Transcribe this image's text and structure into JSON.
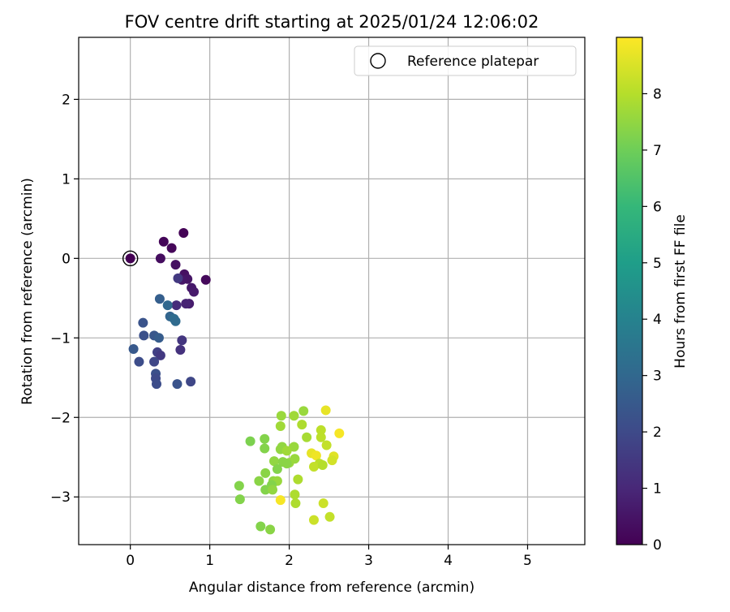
{
  "chart_data": {
    "type": "scatter",
    "title": "FOV centre drift starting at 2025/01/24 12:06:02",
    "xlabel": "Angular distance from reference (arcmin)",
    "ylabel": "Rotation from reference (arcmin)",
    "xlim": [
      -0.65,
      5.72
    ],
    "ylim": [
      -3.6,
      2.78
    ],
    "xticks": [
      0,
      1,
      2,
      3,
      4,
      5
    ],
    "yticks": [
      -3,
      -2,
      -1,
      0,
      1,
      2
    ],
    "grid": true,
    "legend": {
      "placement": "top-right",
      "entries": [
        "Reference platepar"
      ]
    },
    "reference_point": {
      "x": 0,
      "y": 0
    },
    "colorbar": {
      "label": "Hours from first FF file",
      "range": [
        0,
        9
      ],
      "ticks": [
        0,
        1,
        2,
        3,
        4,
        5,
        6,
        7,
        8
      ],
      "colormap": "viridis",
      "stops": [
        "#440154",
        "#482878",
        "#3e4a89",
        "#31688e",
        "#26828e",
        "#1f9e89",
        "#35b779",
        "#6ece58",
        "#b5de2b",
        "#fde725"
      ]
    },
    "series": [
      {
        "x": [
          0,
          0.67,
          0.42,
          0.52,
          0.95,
          0.38,
          0.57,
          0.68,
          0.72,
          0.65,
          0.77,
          0.8,
          0.74,
          0.7,
          0.6,
          0.58,
          0.37,
          0.47,
          0.5,
          0.55,
          0.57,
          0.16,
          0.3,
          0.36,
          0.17,
          0.65,
          0.04,
          0.34,
          0.63,
          0.38,
          0.3,
          0.32,
          0.11,
          0.32,
          0.33,
          0.59,
          0.76
        ],
        "y": [
          0,
          0.32,
          0.21,
          0.13,
          -0.27,
          0.0,
          -0.08,
          -0.2,
          -0.26,
          -0.27,
          -0.37,
          -0.42,
          -0.57,
          -0.57,
          -0.25,
          -0.59,
          -0.51,
          -0.59,
          -0.73,
          -0.76,
          -0.79,
          -0.81,
          -0.97,
          -1.0,
          -0.97,
          -1.03,
          -1.14,
          -1.18,
          -1.15,
          -1.22,
          -1.3,
          -1.45,
          -1.3,
          -1.51,
          -1.58,
          -1.58,
          -1.55
        ],
        "hours": [
          0,
          0.05,
          0.1,
          0.15,
          0.2,
          0.3,
          0.35,
          0.4,
          0.5,
          0.55,
          0.6,
          0.65,
          0.7,
          0.9,
          1.5,
          1.1,
          2.7,
          3.0,
          2.9,
          3.2,
          3.1,
          2.3,
          2.4,
          2.6,
          2.2,
          1.4,
          2.5,
          1.7,
          1.3,
          1.5,
          1.9,
          2.2,
          2.1,
          2.0,
          2.1,
          2.3,
          1.9
        ]
      },
      {
        "x": [
          1.9,
          2.06,
          2.18,
          2.46,
          2.63,
          2.4,
          2.4,
          2.47,
          2.22,
          1.89,
          1.91,
          2.06,
          2.16,
          1.69,
          1.51,
          1.69,
          1.89,
          1.97,
          2.07,
          2.0,
          2.28,
          2.34,
          2.56,
          2.54,
          2.38,
          2.31,
          2.42,
          1.81,
          1.92,
          1.97,
          1.7,
          1.85,
          1.8,
          2.11,
          1.62,
          1.85,
          1.78,
          1.37,
          1.7,
          1.79,
          2.07,
          1.89,
          1.38,
          2.08,
          2.43,
          2.51,
          2.31,
          1.64,
          1.76
        ],
        "y": [
          -1.98,
          -1.98,
          -1.92,
          -1.91,
          -2.2,
          -2.16,
          -2.25,
          -2.35,
          -2.25,
          -2.11,
          -2.37,
          -2.37,
          -2.09,
          -2.27,
          -2.3,
          -2.39,
          -2.4,
          -2.42,
          -2.52,
          -2.57,
          -2.45,
          -2.48,
          -2.49,
          -2.54,
          -2.58,
          -2.62,
          -2.6,
          -2.55,
          -2.56,
          -2.58,
          -2.7,
          -2.65,
          -2.8,
          -2.78,
          -2.8,
          -2.8,
          -2.85,
          -2.86,
          -2.91,
          -2.91,
          -2.97,
          -3.04,
          -3.03,
          -3.08,
          -3.08,
          -3.25,
          -3.29,
          -3.37,
          -3.41
        ],
        "hours": [
          7.6,
          7.7,
          7.6,
          8.7,
          8.9,
          8.1,
          8.1,
          8.2,
          7.8,
          7.7,
          7.5,
          7.6,
          7.9,
          7.3,
          7.2,
          7.3,
          7.5,
          7.7,
          7.6,
          7.6,
          8.7,
          8.8,
          8.6,
          8.4,
          8.1,
          8.2,
          8.0,
          7.5,
          7.4,
          7.4,
          7.4,
          7.3,
          7.5,
          7.9,
          7.4,
          7.6,
          7.3,
          7.3,
          7.3,
          7.5,
          7.9,
          8.9,
          7.3,
          7.9,
          8.3,
          8.2,
          8.3,
          7.3,
          7.4
        ]
      }
    ]
  }
}
